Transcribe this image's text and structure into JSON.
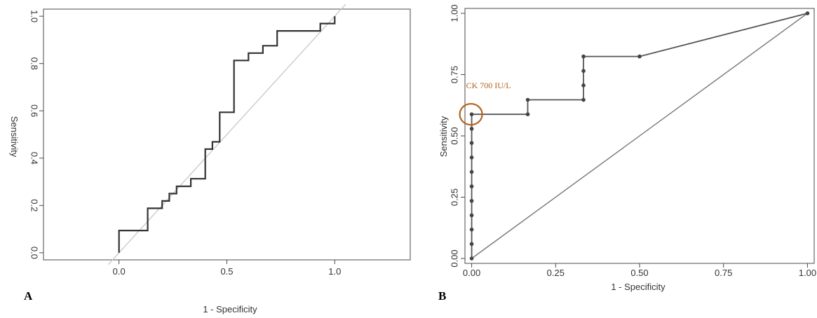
{
  "chart_data": [
    {
      "panel": "A",
      "type": "line",
      "title": "",
      "xlabel": "1 - Specificity",
      "ylabel": "Sensitivity",
      "xlim": [
        -0.35,
        1.35
      ],
      "ylim": [
        -0.03,
        1.03
      ],
      "xticks": [
        0.0,
        0.5,
        1.0
      ],
      "xtick_labels": [
        "0.0",
        "0.5",
        "1.0"
      ],
      "yticks": [
        0.0,
        0.2,
        0.4,
        0.6,
        0.8,
        1.0
      ],
      "ytick_labels": [
        "0.0",
        "0.2",
        "0.4",
        "0.6",
        "0.8",
        "1.0"
      ],
      "grid": false,
      "colors": {
        "roc": "#333333",
        "diagonal": "#c8c8c8"
      },
      "series": [
        {
          "values_xy": [
            [
              0.0,
              0.0
            ],
            [
              0.0,
              0.094
            ],
            [
              0.133,
              0.094
            ],
            [
              0.133,
              0.188
            ],
            [
              0.2,
              0.188
            ],
            [
              0.2,
              0.219
            ],
            [
              0.233,
              0.219
            ],
            [
              0.233,
              0.25
            ],
            [
              0.267,
              0.25
            ],
            [
              0.267,
              0.281
            ],
            [
              0.333,
              0.281
            ],
            [
              0.333,
              0.313
            ],
            [
              0.4,
              0.313
            ],
            [
              0.4,
              0.344
            ],
            [
              0.4,
              0.438
            ],
            [
              0.433,
              0.438
            ],
            [
              0.433,
              0.469
            ],
            [
              0.467,
              0.469
            ],
            [
              0.467,
              0.594
            ],
            [
              0.533,
              0.594
            ],
            [
              0.533,
              0.813
            ],
            [
              0.6,
              0.813
            ],
            [
              0.6,
              0.844
            ],
            [
              0.667,
              0.844
            ],
            [
              0.667,
              0.875
            ],
            [
              0.733,
              0.875
            ],
            [
              0.733,
              0.938
            ],
            [
              0.933,
              0.938
            ],
            [
              0.933,
              0.969
            ],
            [
              1.0,
              0.969
            ],
            [
              1.0,
              1.0
            ]
          ]
        }
      ],
      "reference_line": [
        [
          -0.05,
          -0.05
        ],
        [
          1.05,
          1.05
        ]
      ]
    },
    {
      "panel": "B",
      "type": "line",
      "title": "",
      "xlabel": "1 - Specificity",
      "ylabel": "Sensitivity",
      "xlim": [
        -0.02,
        1.02
      ],
      "ylim": [
        -0.02,
        1.02
      ],
      "xticks": [
        0.0,
        0.25,
        0.5,
        0.75,
        1.0
      ],
      "xtick_labels": [
        "0.00",
        "0.25",
        "0.50",
        "0.75",
        "1.00"
      ],
      "yticks": [
        0.0,
        0.25,
        0.5,
        0.75,
        1.0
      ],
      "ytick_labels": [
        "0.00",
        "0.25",
        "0.50",
        "0.75",
        "1.00"
      ],
      "grid": false,
      "colors": {
        "roc": "#555555",
        "diagonal": "#777777",
        "annotation": "#b4621e"
      },
      "series": [
        {
          "values_xy": [
            [
              0.0,
              0.0
            ],
            [
              0.0,
              0.059
            ],
            [
              0.0,
              0.118
            ],
            [
              0.0,
              0.176
            ],
            [
              0.0,
              0.235
            ],
            [
              0.0,
              0.294
            ],
            [
              0.0,
              0.353
            ],
            [
              0.0,
              0.412
            ],
            [
              0.0,
              0.471
            ],
            [
              0.0,
              0.529
            ],
            [
              0.0,
              0.588
            ],
            [
              0.167,
              0.588
            ],
            [
              0.167,
              0.647
            ],
            [
              0.333,
              0.647
            ],
            [
              0.333,
              0.706
            ],
            [
              0.333,
              0.765
            ],
            [
              0.333,
              0.824
            ],
            [
              0.5,
              0.824
            ],
            [
              1.0,
              1.0
            ]
          ]
        }
      ],
      "reference_line": [
        [
          0.0,
          0.0
        ],
        [
          1.0,
          1.0
        ]
      ],
      "annotation": {
        "text": "CK 700 IU/L",
        "x": 0.0,
        "y": 0.588
      }
    }
  ],
  "panel_labels": [
    "A",
    "B"
  ]
}
